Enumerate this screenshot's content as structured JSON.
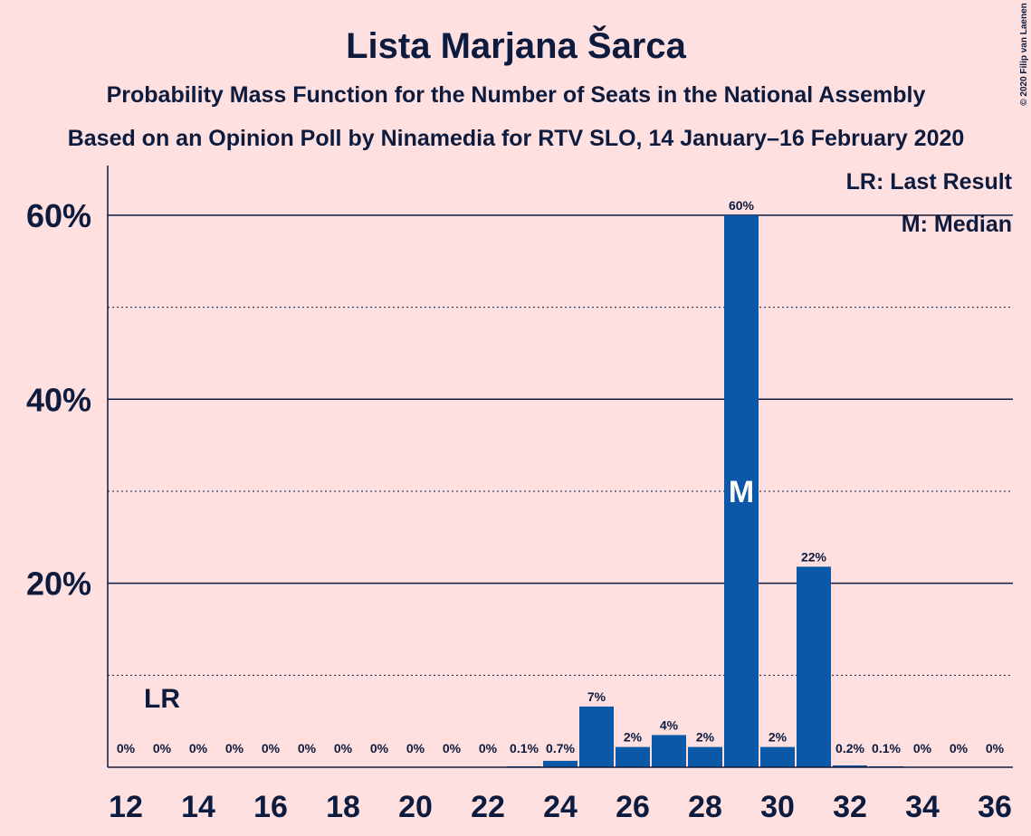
{
  "chart_data": {
    "type": "bar",
    "title": "Lista Marjana Šarca",
    "subtitle": "Probability Mass Function for the Number of Seats in the National Assembly",
    "subtitle2": "Based on an Opinion Poll by Ninamedia for RTV SLO, 14 January–16 February 2020",
    "copyright": "© 2020 Filip van Laenen",
    "x": [
      12,
      13,
      14,
      15,
      16,
      17,
      18,
      19,
      20,
      21,
      22,
      23,
      24,
      25,
      26,
      27,
      28,
      29,
      30,
      31,
      32,
      33,
      34,
      35,
      36
    ],
    "values": [
      0,
      0,
      0,
      0,
      0,
      0,
      0,
      0,
      0,
      0,
      0,
      0.1,
      0.7,
      6.6,
      2.2,
      3.5,
      2.2,
      60,
      2.2,
      21.8,
      0.2,
      0.1,
      0,
      0,
      0
    ],
    "value_labels": [
      "0%",
      "0%",
      "0%",
      "0%",
      "0%",
      "0%",
      "0%",
      "0%",
      "0%",
      "0%",
      "0%",
      "0.1%",
      "0.7%",
      "7%",
      "2%",
      "4%",
      "2%",
      "60%",
      "2%",
      "22%",
      "0.2%",
      "0.1%",
      "0%",
      "0%",
      "0%"
    ],
    "color": "#0b58a8",
    "xlim": [
      11.5,
      36.5
    ],
    "xticks": [
      12,
      14,
      16,
      18,
      20,
      22,
      24,
      26,
      28,
      30,
      32,
      34,
      36
    ],
    "ylim": [
      0,
      65.4
    ],
    "yticks": [
      {
        "value": 20,
        "label": "20%"
      },
      {
        "value": 40,
        "label": "40%"
      },
      {
        "value": 60,
        "label": "60%"
      }
    ],
    "minor_grid": [
      10,
      30,
      50
    ],
    "grid": true,
    "last_result": {
      "x": 13,
      "label": "LR"
    },
    "median": {
      "x": 29,
      "label": "M"
    },
    "legend": [
      "LR: Last Result",
      "M: Median"
    ]
  }
}
